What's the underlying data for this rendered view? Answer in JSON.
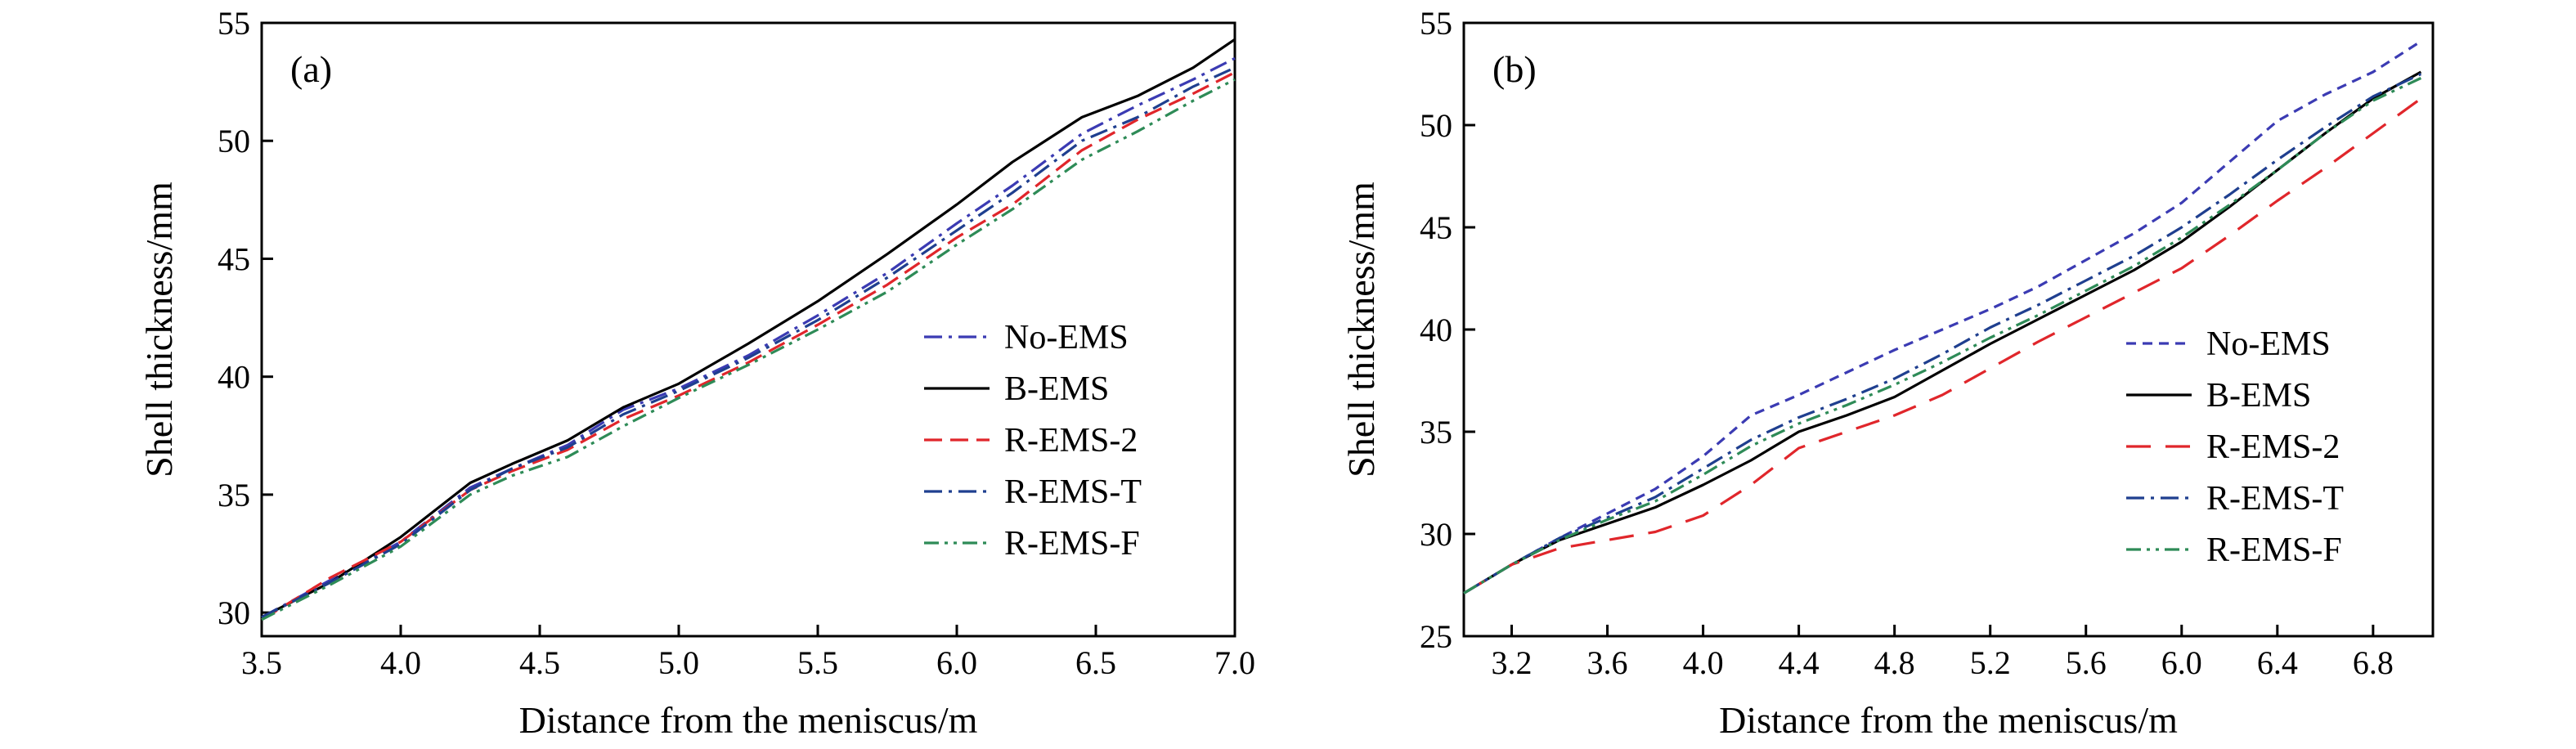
{
  "chart_data": [
    {
      "type": "line",
      "panel_label": "(a)",
      "xlabel": "Distance from the meniscus/m",
      "ylabel": "Shell thickness/mm",
      "xlim": [
        3.5,
        7.0
      ],
      "ylim": [
        29,
        55
      ],
      "xticks": [
        "3.5",
        "4.0",
        "4.5",
        "5.0",
        "5.5",
        "6.0",
        "6.5",
        "7.0"
      ],
      "yticks": [
        "30",
        "35",
        "40",
        "45",
        "50",
        "55"
      ],
      "grid": false,
      "legend_position": "lower-right",
      "x": [
        3.5,
        3.75,
        4.0,
        4.25,
        4.4,
        4.6,
        4.8,
        5.0,
        5.25,
        5.5,
        5.75,
        6.0,
        6.2,
        6.45,
        6.65,
        6.85,
        7.0
      ],
      "series": [
        {
          "name": "No-EMS",
          "color": "#3b3bb3",
          "dash": "dashdot",
          "values": [
            29.8,
            31.4,
            33.0,
            35.3,
            36.1,
            37.1,
            38.6,
            39.5,
            40.9,
            42.6,
            44.4,
            46.5,
            48.1,
            50.3,
            51.5,
            52.6,
            53.5
          ]
        },
        {
          "name": "B-EMS",
          "color": "#000000",
          "dash": "solid",
          "values": [
            29.8,
            31.3,
            33.2,
            35.5,
            36.3,
            37.3,
            38.7,
            39.7,
            41.4,
            43.2,
            45.2,
            47.3,
            49.1,
            51.0,
            51.9,
            53.1,
            54.3
          ]
        },
        {
          "name": "R-EMS-2",
          "color": "#e0262b",
          "dash": "dashed",
          "values": [
            29.7,
            31.5,
            33.0,
            35.2,
            36.0,
            36.9,
            38.2,
            39.2,
            40.6,
            42.2,
            43.9,
            45.9,
            47.3,
            49.6,
            50.9,
            52.0,
            52.9
          ]
        },
        {
          "name": "R-EMS-T",
          "color": "#1f3f8f",
          "dash": "dashdot",
          "values": [
            29.8,
            31.3,
            32.9,
            35.2,
            36.1,
            37.0,
            38.4,
            39.4,
            40.8,
            42.4,
            44.2,
            46.2,
            47.8,
            50.0,
            51.0,
            52.3,
            53.1
          ]
        },
        {
          "name": "R-EMS-F",
          "color": "#2e8b57",
          "dash": "dashdotdot",
          "values": [
            29.7,
            31.2,
            32.8,
            35.0,
            35.8,
            36.6,
            37.9,
            39.1,
            40.5,
            42.0,
            43.6,
            45.6,
            47.1,
            49.2,
            50.4,
            51.7,
            52.6
          ]
        }
      ]
    },
    {
      "type": "line",
      "panel_label": "(b)",
      "xlabel": "Distance from the meniscus/m",
      "ylabel": "Shell thickness/mm",
      "xlim": [
        3.0,
        7.05
      ],
      "ylim": [
        25,
        55
      ],
      "xticks": [
        "3.2",
        "3.6",
        "4.0",
        "4.4",
        "4.8",
        "5.2",
        "5.6",
        "6.0",
        "6.4",
        "6.8"
      ],
      "yticks": [
        "25",
        "30",
        "35",
        "40",
        "45",
        "50",
        "55"
      ],
      "grid": false,
      "legend_position": "lower-right",
      "x": [
        3.0,
        3.2,
        3.4,
        3.6,
        3.8,
        4.0,
        4.2,
        4.4,
        4.6,
        4.8,
        5.0,
        5.2,
        5.4,
        5.6,
        5.8,
        6.0,
        6.2,
        6.4,
        6.6,
        6.8,
        7.0
      ],
      "series": [
        {
          "name": "No-EMS",
          "color": "#3b3bb3",
          "dash": "dashed-short",
          "values": [
            27.1,
            28.5,
            29.8,
            31.0,
            32.2,
            33.8,
            35.8,
            36.8,
            37.9,
            39.0,
            40.0,
            41.0,
            42.1,
            43.4,
            44.7,
            46.2,
            48.2,
            50.2,
            51.5,
            52.6,
            54.1
          ]
        },
        {
          "name": "B-EMS",
          "color": "#000000",
          "dash": "solid",
          "values": [
            27.1,
            28.5,
            29.7,
            30.5,
            31.3,
            32.4,
            33.6,
            35.0,
            35.8,
            36.7,
            38.0,
            39.3,
            40.5,
            41.7,
            42.9,
            44.3,
            46.0,
            47.8,
            49.6,
            51.3,
            52.6
          ]
        },
        {
          "name": "R-EMS-2",
          "color": "#e0262b",
          "dash": "dashed-long",
          "values": [
            27.1,
            28.5,
            29.3,
            29.7,
            30.1,
            30.9,
            32.4,
            34.2,
            35.0,
            35.8,
            36.8,
            38.1,
            39.4,
            40.6,
            41.8,
            43.0,
            44.6,
            46.3,
            47.9,
            49.6,
            51.3
          ]
        },
        {
          "name": "R-EMS-T",
          "color": "#1f3f8f",
          "dash": "dashdot",
          "values": [
            27.1,
            28.5,
            29.8,
            30.8,
            31.8,
            33.2,
            34.6,
            35.7,
            36.6,
            37.6,
            38.8,
            40.1,
            41.2,
            42.4,
            43.6,
            45.0,
            46.6,
            48.3,
            49.9,
            51.4,
            52.5
          ]
        },
        {
          "name": "R-EMS-F",
          "color": "#2e8b57",
          "dash": "dashdotdot",
          "values": [
            27.1,
            28.5,
            29.7,
            30.7,
            31.6,
            32.9,
            34.3,
            35.4,
            36.3,
            37.3,
            38.4,
            39.6,
            40.7,
            41.9,
            43.1,
            44.5,
            46.1,
            47.8,
            49.6,
            51.2,
            52.3
          ]
        }
      ]
    }
  ]
}
